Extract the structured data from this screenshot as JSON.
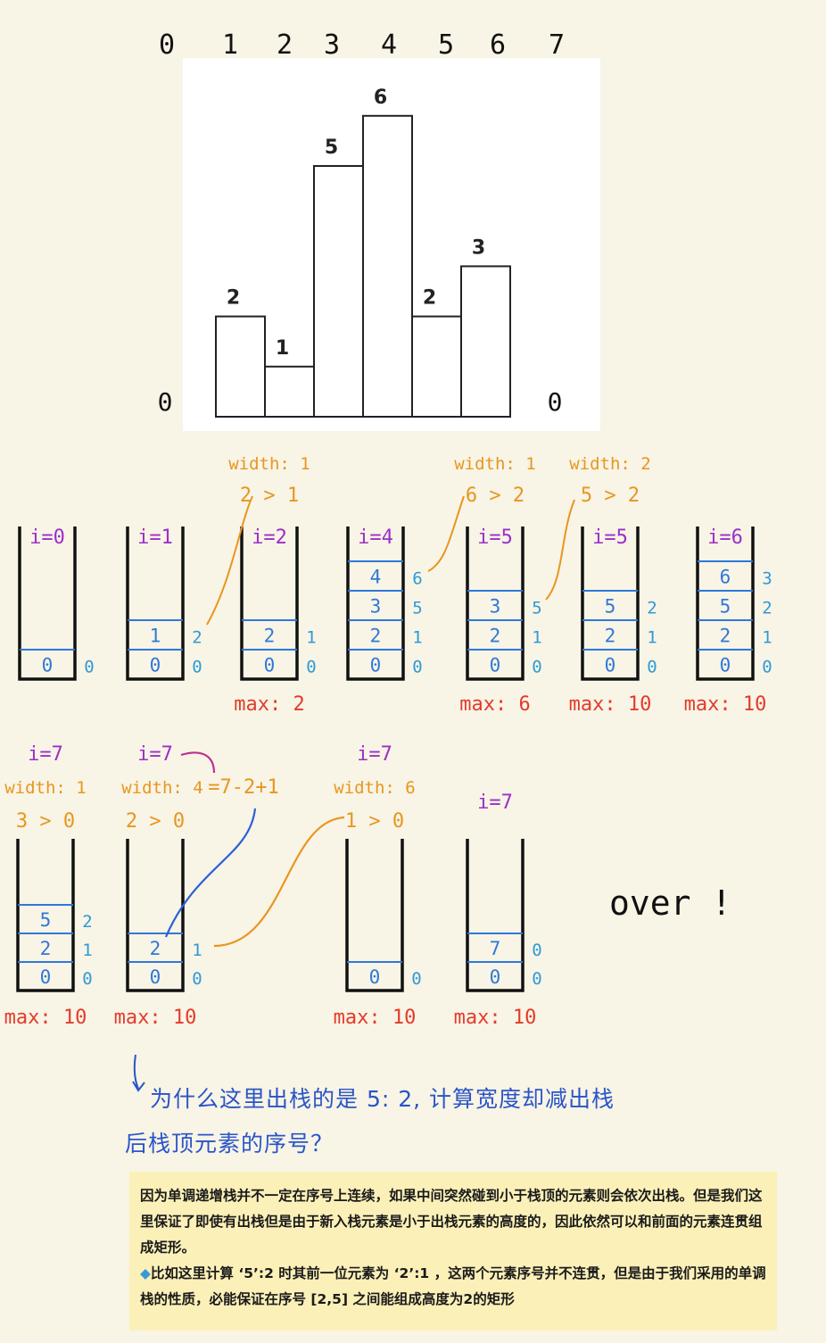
{
  "index_labels": [
    "0",
    "1",
    "2",
    "3",
    "4",
    "5",
    "6",
    "7"
  ],
  "histogram": {
    "heights": [
      2,
      1,
      5,
      6,
      2,
      3
    ],
    "bar_labels": [
      "2",
      "1",
      "5",
      "6",
      "2",
      "3"
    ],
    "sentinel_left": "0",
    "sentinel_right": "0"
  },
  "stacks_row1": [
    {
      "i": "i=0",
      "cells": [
        {
          "v": "0",
          "idx": "0"
        }
      ]
    },
    {
      "i": "i=1",
      "cells": [
        {
          "v": "0",
          "idx": "0"
        },
        {
          "v": "1",
          "idx": "2"
        }
      ]
    },
    {
      "i": "i=2",
      "cells": [
        {
          "v": "0",
          "idx": "0"
        },
        {
          "v": "2",
          "idx": "1"
        }
      ],
      "width": "width: 1",
      "cmp": "2 > 1",
      "max": "max: 2"
    },
    {
      "i": "i=4",
      "cells": [
        {
          "v": "0",
          "idx": "0"
        },
        {
          "v": "2",
          "idx": "1"
        },
        {
          "v": "3",
          "idx": "5"
        },
        {
          "v": "4",
          "idx": "6"
        }
      ]
    },
    {
      "i": "i=5",
      "cells": [
        {
          "v": "0",
          "idx": "0"
        },
        {
          "v": "2",
          "idx": "1"
        },
        {
          "v": "3",
          "idx": "5"
        }
      ],
      "width": "width: 1",
      "cmp": "6 > 2",
      "max": "max: 6"
    },
    {
      "i": "i=5",
      "cells": [
        {
          "v": "0",
          "idx": "0"
        },
        {
          "v": "2",
          "idx": "1"
        },
        {
          "v": "5",
          "idx": "2"
        }
      ],
      "width": "width: 2",
      "cmp": "5 > 2",
      "max": "max: 10"
    },
    {
      "i": "i=6",
      "cells": [
        {
          "v": "0",
          "idx": "0"
        },
        {
          "v": "2",
          "idx": "1"
        },
        {
          "v": "5",
          "idx": "2"
        },
        {
          "v": "6",
          "idx": "3"
        }
      ],
      "max": "max: 10"
    }
  ],
  "stacks_row2": [
    {
      "i": "i=7",
      "cells": [
        {
          "v": "0",
          "idx": "0"
        },
        {
          "v": "2",
          "idx": "1"
        },
        {
          "v": "5",
          "idx": "2"
        }
      ],
      "width": "width: 1",
      "cmp": "3 > 0",
      "max": "max: 10"
    },
    {
      "i": "i=7",
      "cells": [
        {
          "v": "0",
          "idx": "0"
        },
        {
          "v": "2",
          "idx": "1"
        }
      ],
      "width": "width: 4",
      "formula": "=7-2+1",
      "cmp": "2 > 0",
      "max": "max: 10"
    },
    {
      "i": "i=7",
      "cells": [
        {
          "v": "0",
          "idx": "0"
        }
      ],
      "width": "width: 6",
      "cmp": "1 > 0",
      "max": "max: 10"
    },
    {
      "i": "i=7",
      "cells": [
        {
          "v": "0",
          "idx": "0"
        },
        {
          "v": "7",
          "idx": "0"
        }
      ],
      "max": "max: 10"
    }
  ],
  "over_text": "over !",
  "question": {
    "line1": "为什么这里出栈的是 5: 2, 计算宽度却减出栈",
    "line2": "后栈顶元素的序号？"
  },
  "note": {
    "p1": "因为单调递增栈并不一定在序号上连续，如果中间突然碰到小于栈顶的元素则会依次出栈。但是我们这里保证了即使有出栈但是由于新入栈元素是小于出栈元素的高度的，因此依然可以和前面的元素连贯组成矩形。",
    "gem_icon": "gem-icon",
    "p2": "比如这里计算 ‘5’:2 时其前一位元素为 ‘2’:1 ，这两个元素序号并不连贯，但是由于我们采用的单调栈的性质，必能保证在序号 [2,5] 之间能组成高度为2的矩形"
  },
  "colors": {
    "stack_line": "#111111",
    "divider": "#2f78d8",
    "value": "#2f78d8",
    "index": "#2f9ad8",
    "i_label": "#9b2fc8",
    "width": "#e8961e",
    "max": "#e33b2a",
    "question": "#2a55c8",
    "note_bg": "#fbf0b8"
  }
}
